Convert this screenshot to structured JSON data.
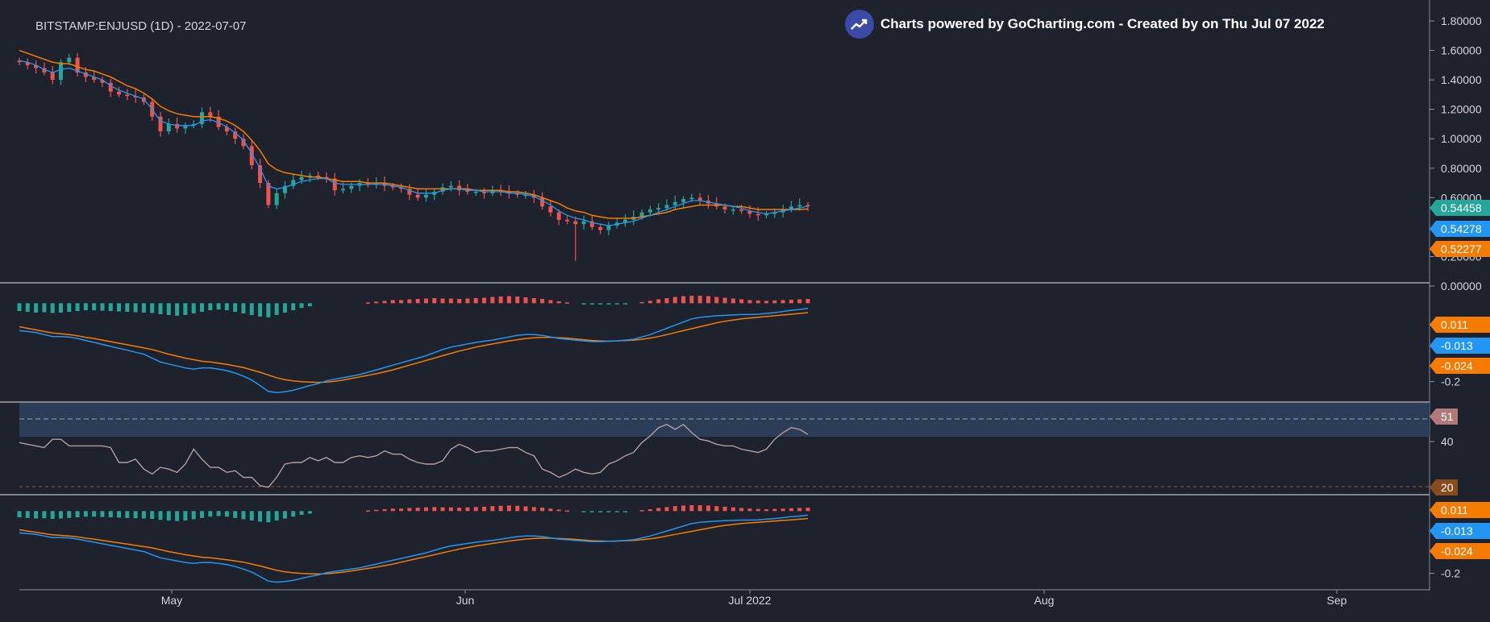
{
  "header": {
    "symbol_title": "BITSTAMP:ENJUSD (1D) - 2022-07-07",
    "credit": "Charts powered by GoCharting.com - Created by  on Thu Jul 07 2022"
  },
  "colors": {
    "background": "#1e222d",
    "up": "#26a69a",
    "down": "#ef5350",
    "ema_fast": "#2196f3",
    "ema_slow": "#f57c00",
    "rsi_line": "#b59c9c",
    "rsi_band": "#2b3d57"
  },
  "chart_data": [
    {
      "type": "candlestick",
      "x_labels": [
        "May",
        "Jun",
        "Jul 2022",
        "Aug",
        "Sep"
      ],
      "y_ticks": [
        "1.80000",
        "1.60000",
        "1.40000",
        "1.20000",
        "1.00000",
        "0.80000",
        "0.60000",
        "0.20000",
        "0.00000"
      ],
      "ylim": [
        -0.05,
        1.9
      ],
      "price_labels": [
        {
          "value": "0.54458",
          "color": "#26a69a"
        },
        {
          "value": "0.54278",
          "color": "#2196f3"
        },
        {
          "value": "0.52277",
          "color": "#f57c00"
        }
      ],
      "series": [
        {
          "name": "close",
          "values": [
            1.52,
            1.5,
            1.48,
            1.45,
            1.4,
            1.52,
            1.55,
            1.45,
            1.42,
            1.4,
            1.38,
            1.32,
            1.3,
            1.29,
            1.28,
            1.25,
            1.15,
            1.05,
            1.1,
            1.07,
            1.09,
            1.1,
            1.18,
            1.15,
            1.08,
            1.05,
            1.0,
            0.95,
            0.82,
            0.7,
            0.55,
            0.63,
            0.68,
            0.72,
            0.74,
            0.75,
            0.74,
            0.73,
            0.65,
            0.66,
            0.68,
            0.7,
            0.69,
            0.7,
            0.68,
            0.67,
            0.66,
            0.62,
            0.6,
            0.62,
            0.64,
            0.67,
            0.68,
            0.65,
            0.64,
            0.64,
            0.63,
            0.65,
            0.64,
            0.63,
            0.62,
            0.62,
            0.6,
            0.54,
            0.5,
            0.45,
            0.44,
            0.42,
            0.44,
            0.4,
            0.38,
            0.41,
            0.43,
            0.45,
            0.47,
            0.5,
            0.52,
            0.53,
            0.55,
            0.57,
            0.59,
            0.6,
            0.58,
            0.56,
            0.54,
            0.52,
            0.52,
            0.51,
            0.49,
            0.48,
            0.49,
            0.5,
            0.52,
            0.54,
            0.55,
            0.545
          ]
        },
        {
          "name": "ema_fast",
          "values": [
            1.53,
            1.52,
            1.5,
            1.47,
            1.45,
            1.47,
            1.48,
            1.46,
            1.44,
            1.42,
            1.4,
            1.36,
            1.33,
            1.31,
            1.29,
            1.27,
            1.2,
            1.12,
            1.1,
            1.09,
            1.09,
            1.09,
            1.12,
            1.13,
            1.11,
            1.08,
            1.04,
            0.99,
            0.9,
            0.8,
            0.68,
            0.66,
            0.67,
            0.69,
            0.71,
            0.72,
            0.73,
            0.73,
            0.7,
            0.69,
            0.69,
            0.69,
            0.69,
            0.69,
            0.69,
            0.68,
            0.67,
            0.65,
            0.63,
            0.63,
            0.63,
            0.65,
            0.66,
            0.66,
            0.65,
            0.65,
            0.64,
            0.64,
            0.64,
            0.63,
            0.63,
            0.62,
            0.61,
            0.58,
            0.55,
            0.51,
            0.48,
            0.46,
            0.45,
            0.43,
            0.42,
            0.41,
            0.42,
            0.43,
            0.44,
            0.46,
            0.48,
            0.5,
            0.52,
            0.54,
            0.56,
            0.58,
            0.58,
            0.57,
            0.56,
            0.55,
            0.54,
            0.53,
            0.51,
            0.5,
            0.49,
            0.5,
            0.51,
            0.52,
            0.53,
            0.543
          ]
        },
        {
          "name": "ema_slow",
          "values": [
            1.6,
            1.58,
            1.56,
            1.54,
            1.52,
            1.51,
            1.51,
            1.49,
            1.47,
            1.46,
            1.44,
            1.42,
            1.39,
            1.36,
            1.34,
            1.31,
            1.27,
            1.22,
            1.19,
            1.17,
            1.16,
            1.15,
            1.15,
            1.15,
            1.14,
            1.12,
            1.09,
            1.05,
            0.99,
            0.92,
            0.83,
            0.79,
            0.77,
            0.76,
            0.75,
            0.74,
            0.74,
            0.73,
            0.72,
            0.71,
            0.71,
            0.71,
            0.7,
            0.7,
            0.7,
            0.69,
            0.68,
            0.67,
            0.66,
            0.66,
            0.66,
            0.66,
            0.66,
            0.66,
            0.66,
            0.65,
            0.65,
            0.65,
            0.65,
            0.64,
            0.64,
            0.63,
            0.62,
            0.6,
            0.58,
            0.56,
            0.53,
            0.51,
            0.5,
            0.48,
            0.47,
            0.46,
            0.46,
            0.46,
            0.46,
            0.47,
            0.48,
            0.49,
            0.5,
            0.52,
            0.53,
            0.54,
            0.55,
            0.55,
            0.55,
            0.55,
            0.54,
            0.54,
            0.53,
            0.52,
            0.52,
            0.52,
            0.52,
            0.52,
            0.52,
            0.523
          ]
        }
      ]
    },
    {
      "type": "bar",
      "name": "macd",
      "y_ticks": [
        "-0.2"
      ],
      "ylim": [
        -0.25,
        0.05
      ],
      "value_labels": [
        {
          "value": "0.011",
          "color": "#f57c00"
        },
        {
          "value": "-0.013",
          "color": "#2196f3"
        },
        {
          "value": "-0.024",
          "color": "#f57c00"
        }
      ],
      "histogram": [
        -0.02,
        -0.022,
        -0.024,
        -0.023,
        -0.025,
        -0.024,
        -0.022,
        -0.02,
        -0.018,
        -0.018,
        -0.019,
        -0.02,
        -0.021,
        -0.022,
        -0.023,
        -0.024,
        -0.025,
        -0.028,
        -0.03,
        -0.032,
        -0.03,
        -0.026,
        -0.022,
        -0.018,
        -0.016,
        -0.018,
        -0.022,
        -0.026,
        -0.03,
        -0.034,
        -0.036,
        -0.03,
        -0.024,
        -0.018,
        -0.012,
        -0.008,
        0,
        0,
        0,
        0,
        0,
        0,
        0.002,
        0.004,
        0.006,
        0.008,
        0.008,
        0.01,
        0.011,
        0.012,
        0.013,
        0.012,
        0.012,
        0.011,
        0.012,
        0.013,
        0.014,
        0.016,
        0.017,
        0.018,
        0.017,
        0.015,
        0.013,
        0.011,
        0.008,
        0.005,
        0.002,
        0,
        -0.002,
        -0.003,
        -0.003,
        -0.002,
        -0.002,
        -0.001,
        0,
        0.003,
        0.006,
        0.01,
        0.013,
        0.016,
        0.018,
        0.019,
        0.019,
        0.018,
        0.016,
        0.014,
        0.012,
        0.01,
        0.008,
        0.007,
        0.006,
        0.007,
        0.008,
        0.009,
        0.01,
        0.011
      ],
      "series": [
        {
          "name": "macd_line",
          "values": [
            -0.07,
            -0.072,
            -0.075,
            -0.08,
            -0.085,
            -0.085,
            -0.086,
            -0.09,
            -0.095,
            -0.1,
            -0.105,
            -0.11,
            -0.115,
            -0.12,
            -0.125,
            -0.13,
            -0.14,
            -0.15,
            -0.155,
            -0.16,
            -0.165,
            -0.168,
            -0.165,
            -0.165,
            -0.168,
            -0.172,
            -0.178,
            -0.186,
            -0.196,
            -0.21,
            -0.225,
            -0.228,
            -0.226,
            -0.222,
            -0.216,
            -0.21,
            -0.205,
            -0.198,
            -0.194,
            -0.19,
            -0.186,
            -0.182,
            -0.176,
            -0.17,
            -0.164,
            -0.158,
            -0.152,
            -0.146,
            -0.14,
            -0.134,
            -0.126,
            -0.118,
            -0.112,
            -0.108,
            -0.104,
            -0.1,
            -0.097,
            -0.094,
            -0.09,
            -0.086,
            -0.082,
            -0.08,
            -0.08,
            -0.082,
            -0.086,
            -0.09,
            -0.092,
            -0.094,
            -0.096,
            -0.098,
            -0.098,
            -0.097,
            -0.096,
            -0.094,
            -0.092,
            -0.086,
            -0.08,
            -0.072,
            -0.064,
            -0.056,
            -0.048,
            -0.04,
            -0.036,
            -0.034,
            -0.032,
            -0.031,
            -0.03,
            -0.029,
            -0.029,
            -0.028,
            -0.026,
            -0.024,
            -0.021,
            -0.018,
            -0.016,
            -0.013
          ]
        },
        {
          "name": "signal_line",
          "values": [
            -0.06,
            -0.064,
            -0.068,
            -0.072,
            -0.076,
            -0.078,
            -0.08,
            -0.083,
            -0.087,
            -0.09,
            -0.094,
            -0.098,
            -0.102,
            -0.106,
            -0.11,
            -0.114,
            -0.118,
            -0.124,
            -0.13,
            -0.135,
            -0.14,
            -0.144,
            -0.148,
            -0.15,
            -0.153,
            -0.156,
            -0.16,
            -0.164,
            -0.17,
            -0.176,
            -0.183,
            -0.19,
            -0.195,
            -0.198,
            -0.2,
            -0.201,
            -0.202,
            -0.201,
            -0.199,
            -0.196,
            -0.192,
            -0.188,
            -0.184,
            -0.18,
            -0.175,
            -0.17,
            -0.164,
            -0.158,
            -0.152,
            -0.146,
            -0.14,
            -0.134,
            -0.128,
            -0.122,
            -0.117,
            -0.112,
            -0.108,
            -0.104,
            -0.1,
            -0.096,
            -0.093,
            -0.09,
            -0.088,
            -0.087,
            -0.087,
            -0.088,
            -0.089,
            -0.091,
            -0.093,
            -0.095,
            -0.096,
            -0.097,
            -0.096,
            -0.095,
            -0.094,
            -0.092,
            -0.089,
            -0.085,
            -0.08,
            -0.075,
            -0.07,
            -0.065,
            -0.06,
            -0.055,
            -0.05,
            -0.046,
            -0.043,
            -0.04,
            -0.038,
            -0.036,
            -0.034,
            -0.032,
            -0.03,
            -0.028,
            -0.026,
            -0.024
          ]
        }
      ]
    },
    {
      "type": "line",
      "name": "rsi",
      "y_ticks": [
        "40"
      ],
      "ylim": [
        15,
        70
      ],
      "band": [
        45,
        60
      ],
      "level_lines": [
        55,
        20
      ],
      "value_labels": [
        {
          "value": "51",
          "color": "#b07a7a"
        },
        {
          "value": "20",
          "color": "#8a4b1a"
        }
      ],
      "series": [
        {
          "name": "rsi",
          "values": [
            46,
            45,
            44,
            43,
            48,
            48,
            44,
            44,
            44,
            44,
            44,
            43,
            34,
            34,
            36,
            30,
            27,
            31,
            30,
            28,
            33,
            42,
            36,
            31,
            31,
            28,
            29,
            25,
            25,
            20,
            19,
            25,
            33,
            34,
            34,
            37,
            35,
            37,
            34,
            34,
            37,
            38,
            37,
            38,
            41,
            39,
            39,
            36,
            34,
            33,
            33,
            35,
            42,
            45,
            43,
            40,
            41,
            41,
            42,
            43,
            43,
            40,
            38,
            30,
            28,
            25,
            27,
            30,
            28,
            27,
            28,
            33,
            35,
            38,
            40,
            46,
            50,
            55,
            57,
            54,
            57,
            52,
            48,
            47,
            45,
            44,
            44,
            42,
            41,
            40,
            42,
            48,
            52,
            55,
            54,
            51
          ]
        }
      ]
    },
    {
      "type": "bar",
      "name": "macd_2",
      "y_ticks": [
        "-0.2"
      ],
      "ylim": [
        -0.25,
        0.05
      ],
      "value_labels": [
        {
          "value": "0.011",
          "color": "#f57c00"
        },
        {
          "value": "-0.013",
          "color": "#2196f3"
        },
        {
          "value": "-0.024",
          "color": "#f57c00"
        }
      ]
    }
  ]
}
